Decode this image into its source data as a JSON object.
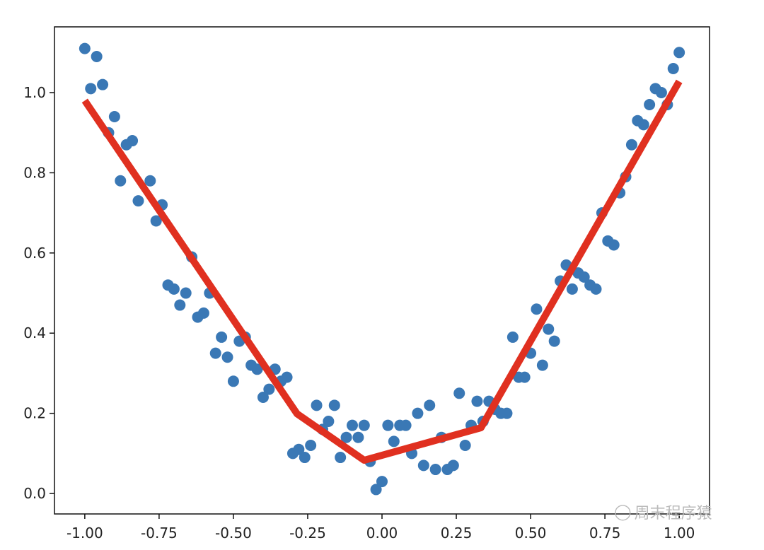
{
  "chart_data": {
    "type": "scatter",
    "title": "",
    "xlabel": "",
    "ylabel": "",
    "xlim": [
      -1.102,
      1.102
    ],
    "ylim": [
      -0.051,
      1.164
    ],
    "grid": false,
    "xticks": [
      "-1.00",
      "-0.75",
      "-0.50",
      "-0.25",
      "0.00",
      "0.25",
      "0.50",
      "0.75",
      "1.00"
    ],
    "xtick_values": [
      -1,
      -0.75,
      -0.5,
      -0.25,
      0,
      0.25,
      0.5,
      0.75,
      1
    ],
    "yticks": [
      "0.0",
      "0.2",
      "0.4",
      "0.6",
      "0.8",
      "1.0"
    ],
    "ytick_values": [
      0,
      0.2,
      0.4,
      0.6,
      0.8,
      1.0
    ],
    "scatter": {
      "color": "#3a78b5",
      "x": [
        -1.0,
        -0.96,
        -0.98,
        -0.94,
        -0.92,
        -0.9,
        -0.88,
        -0.86,
        -0.84,
        -0.82,
        -0.78,
        -0.76,
        -0.74,
        -0.72,
        -0.7,
        -0.68,
        -0.66,
        -0.64,
        -0.62,
        -0.6,
        -0.58,
        -0.56,
        -0.54,
        -0.52,
        -0.5,
        -0.48,
        -0.46,
        -0.44,
        -0.42,
        -0.4,
        -0.38,
        -0.36,
        -0.34,
        -0.32,
        -0.3,
        -0.28,
        -0.26,
        -0.24,
        -0.22,
        -0.2,
        -0.18,
        -0.16,
        -0.14,
        -0.12,
        -0.1,
        -0.08,
        -0.06,
        -0.04,
        -0.02,
        0.0,
        0.02,
        0.04,
        0.06,
        0.08,
        0.1,
        0.12,
        0.14,
        0.16,
        0.18,
        0.2,
        0.22,
        0.24,
        0.26,
        0.28,
        0.3,
        0.32,
        0.34,
        0.36,
        0.38,
        0.4,
        0.42,
        0.44,
        0.46,
        0.48,
        0.5,
        0.52,
        0.54,
        0.56,
        0.58,
        0.6,
        0.62,
        0.64,
        0.66,
        0.68,
        0.7,
        0.72,
        0.74,
        0.76,
        0.78,
        0.8,
        0.82,
        0.84,
        0.86,
        0.88,
        0.9,
        0.92,
        0.94,
        0.96,
        0.98,
        1.0
      ],
      "y": [
        1.11,
        1.09,
        1.01,
        1.02,
        0.9,
        0.94,
        0.78,
        0.87,
        0.88,
        0.73,
        0.78,
        0.68,
        0.72,
        0.52,
        0.51,
        0.47,
        0.5,
        0.59,
        0.44,
        0.45,
        0.5,
        0.35,
        0.39,
        0.34,
        0.28,
        0.38,
        0.39,
        0.32,
        0.31,
        0.24,
        0.26,
        0.31,
        0.28,
        0.29,
        0.1,
        0.11,
        0.09,
        0.12,
        0.22,
        0.16,
        0.18,
        0.22,
        0.09,
        0.14,
        0.17,
        0.14,
        0.17,
        0.08,
        0.01,
        0.03,
        0.17,
        0.13,
        0.17,
        0.17,
        0.1,
        0.2,
        0.07,
        0.22,
        0.06,
        0.14,
        0.06,
        0.07,
        0.25,
        0.12,
        0.17,
        0.23,
        0.18,
        0.23,
        0.21,
        0.2,
        0.2,
        0.39,
        0.29,
        0.29,
        0.35,
        0.46,
        0.32,
        0.41,
        0.38,
        0.53,
        0.57,
        0.51,
        0.55,
        0.54,
        0.52,
        0.51,
        0.7,
        0.63,
        0.62,
        0.75,
        0.79,
        0.87,
        0.93,
        0.92,
        0.97,
        1.01,
        1.0,
        0.97,
        1.06,
        1.1
      ]
    },
    "line": {
      "color": "#e03020",
      "x": [
        -1.0,
        -0.286,
        -0.06,
        0.333,
        1.0
      ],
      "y": [
        0.98,
        0.199,
        0.083,
        0.164,
        1.028
      ]
    }
  },
  "watermark": "周末程序猿"
}
